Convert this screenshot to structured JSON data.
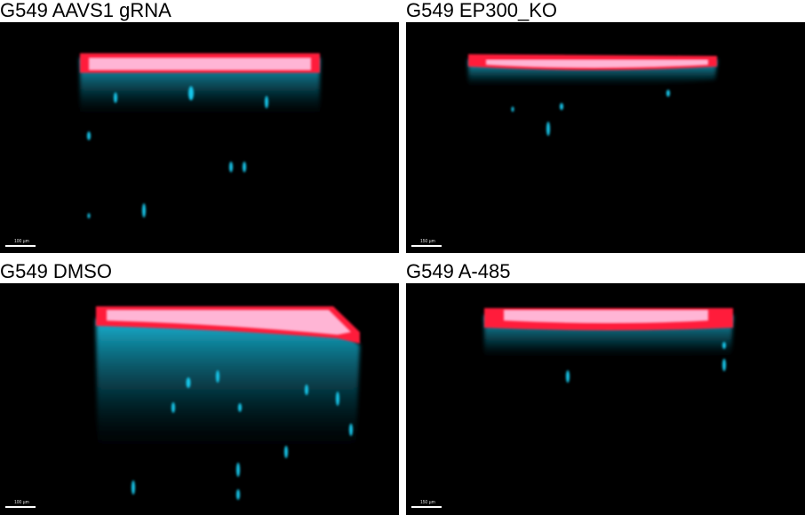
{
  "panels": [
    {
      "title": "G549 AAVS1 gRNA",
      "scale_label": "100 µm"
    },
    {
      "title": "G549 EP300_KO",
      "scale_label": "150 µm"
    },
    {
      "title": "G549 DMSO",
      "scale_label": "100 µm"
    },
    {
      "title": "G549 A-485",
      "scale_label": "150 µm"
    }
  ],
  "colors": {
    "background": "#000000",
    "red_channel": "#ff1a3a",
    "cyan_channel": "#19c8ec",
    "overlap": "#ffd0f0"
  }
}
